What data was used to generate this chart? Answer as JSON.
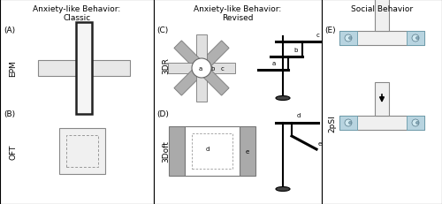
{
  "panel_titles": {
    "left": "Anxiety-like Behavior:\nClassic",
    "middle": "Anxiety-like Behavior:\nRevised",
    "right": "Social Behavior"
  },
  "colors": {
    "background": "#ffffff",
    "light_gray_fill": "#e8e8e8",
    "gray_fill": "#aaaaaa",
    "mid_gray": "#c8c8c8",
    "dark_edge": "#333333",
    "mid_edge": "#666666",
    "light_blue": "#b8d8e8",
    "white": "#ffffff"
  }
}
